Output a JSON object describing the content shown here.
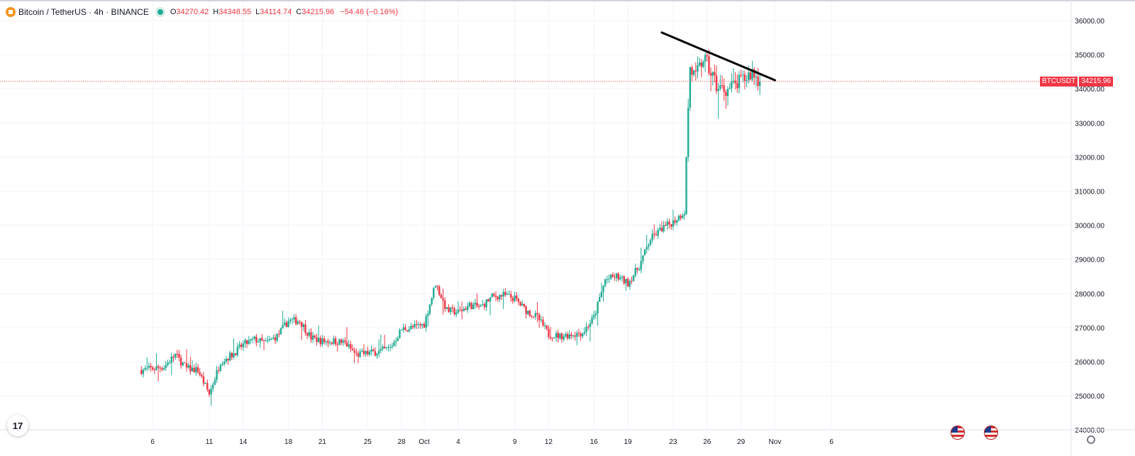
{
  "header": {
    "symbol": "Bitcoin / TetherUS · 4h · BINANCE",
    "o_label": "O",
    "o": "34270.42",
    "h_label": "H",
    "h": "34348.55",
    "l_label": "L",
    "l": "34114.74",
    "c_label": "C",
    "c": "34215.96",
    "change": "−54.46 (−0.16%)"
  },
  "price_tag": {
    "symbol": "BTCUSDT",
    "price": "34215.96"
  },
  "logo_text": "17",
  "colors": {
    "up": "#22ab94",
    "down": "#f23645",
    "grid": "#f0f3fa",
    "trendline": "#000000",
    "last_price_line": "#f23645"
  },
  "chart_data": {
    "type": "candlestick",
    "interval": "4h",
    "ylim": [
      23900,
      36300
    ],
    "y_ticks": [
      24000,
      25000,
      26000,
      27000,
      28000,
      29000,
      30000,
      31000,
      32000,
      33000,
      34000,
      35000,
      36000
    ],
    "y_tick_labels": [
      "24000.00",
      "25000.00",
      "26000.00",
      "27000.00",
      "28000.00",
      "29000.00",
      "30000.00",
      "31000.00",
      "32000.00",
      "33000.00",
      "34000.00",
      "35000.00",
      "36000.00"
    ],
    "x_tick_labels": [
      "6",
      "11",
      "14",
      "18",
      "21",
      "25",
      "28",
      "Oct",
      "4",
      "9",
      "12",
      "16",
      "19",
      "23",
      "26",
      "29",
      "Nov",
      "6"
    ],
    "x_tick_days": [
      -24,
      -19,
      -16,
      -12,
      -9,
      -5,
      -2,
      0,
      3,
      8,
      11,
      15,
      18,
      22,
      25,
      28,
      31,
      36
    ],
    "anchors": [
      [
        "2023-09-06",
        25750
      ],
      [
        "2023-09-08",
        25850
      ],
      [
        "2023-09-09",
        26200
      ],
      [
        "2023-09-10",
        25800
      ],
      [
        "2023-09-11",
        25750
      ],
      [
        "2023-09-12",
        25050
      ],
      [
        "2023-09-13",
        26000
      ],
      [
        "2023-09-14",
        26200
      ],
      [
        "2023-09-15",
        26500
      ],
      [
        "2023-09-16",
        26650
      ],
      [
        "2023-09-17",
        26550
      ],
      [
        "2023-09-18",
        26750
      ],
      [
        "2023-09-19",
        27200
      ],
      [
        "2023-09-20",
        27200
      ],
      [
        "2023-09-21",
        26700
      ],
      [
        "2023-09-22",
        26600
      ],
      [
        "2023-09-23",
        26600
      ],
      [
        "2023-09-24",
        26550
      ],
      [
        "2023-09-25",
        26200
      ],
      [
        "2023-09-26",
        26250
      ],
      [
        "2023-09-27",
        26300
      ],
      [
        "2023-09-28",
        26400
      ],
      [
        "2023-09-29",
        26950
      ],
      [
        "2023-09-30",
        27000
      ],
      [
        "2023-10-01",
        27100
      ],
      [
        "2023-10-02",
        28300
      ],
      [
        "2023-10-03",
        27500
      ],
      [
        "2023-10-04",
        27450
      ],
      [
        "2023-10-05",
        27650
      ],
      [
        "2023-10-06",
        27600
      ],
      [
        "2023-10-07",
        27900
      ],
      [
        "2023-10-08",
        27950
      ],
      [
        "2023-10-09",
        27850
      ],
      [
        "2023-10-10",
        27500
      ],
      [
        "2023-10-11",
        27300
      ],
      [
        "2023-10-12",
        26800
      ],
      [
        "2023-10-13",
        26750
      ],
      [
        "2023-10-14",
        26800
      ],
      [
        "2023-10-15",
        26850
      ],
      [
        "2023-10-16",
        27300
      ],
      [
        "2023-10-17",
        28400
      ],
      [
        "2023-10-18",
        28500
      ],
      [
        "2023-10-19",
        28300
      ],
      [
        "2023-10-20",
        28800
      ],
      [
        "2023-10-21",
        29600
      ],
      [
        "2023-10-22",
        29900
      ],
      [
        "2023-10-23",
        30100
      ],
      [
        "2023-10-24",
        30400
      ],
      [
        "2023-10-24T08:00",
        33500
      ],
      [
        "2023-10-24T12:00",
        34600
      ],
      [
        "2023-10-25",
        34300
      ],
      [
        "2023-10-25T16:00",
        34900
      ],
      [
        "2023-10-26",
        34700
      ],
      [
        "2023-10-27",
        34000
      ],
      [
        "2023-10-28",
        34000
      ],
      [
        "2023-10-29",
        34200
      ],
      [
        "2023-10-30",
        34500
      ],
      [
        "2023-10-30T16:00",
        34215.96
      ]
    ],
    "trendline": {
      "start": [
        "2023-10-22",
        35650
      ],
      "end": [
        "2023-11-01",
        34250
      ]
    },
    "last_price": 34215.96
  }
}
